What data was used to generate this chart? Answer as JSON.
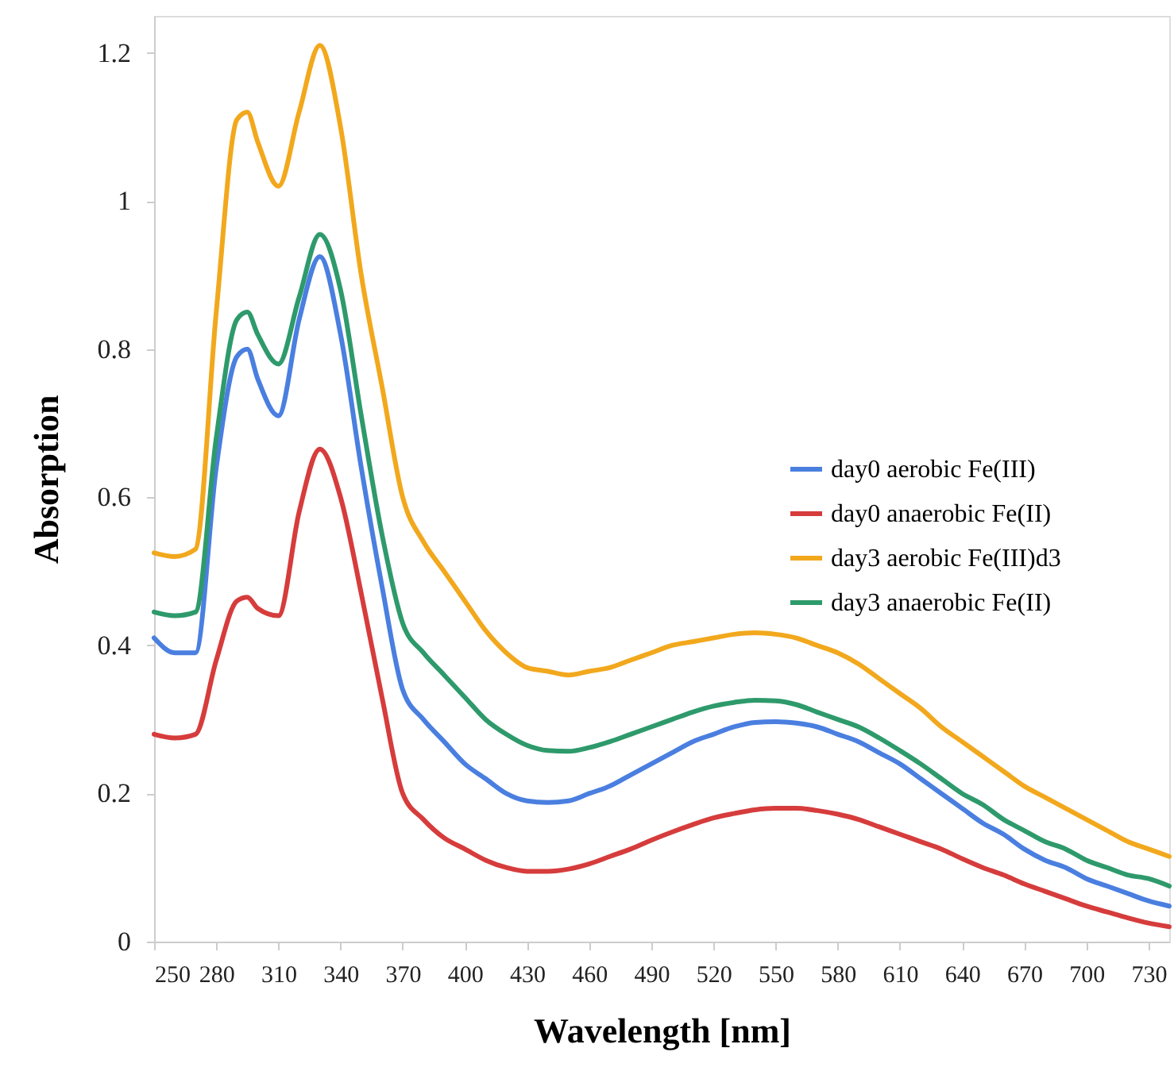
{
  "chart_data": {
    "type": "line",
    "xlabel": "Wavelength [nm]",
    "ylabel": "Absorption",
    "x": [
      250,
      260,
      270,
      280,
      290,
      295,
      300,
      310,
      320,
      330,
      340,
      350,
      360,
      370,
      380,
      390,
      400,
      410,
      420,
      430,
      440,
      450,
      460,
      470,
      480,
      490,
      500,
      510,
      520,
      530,
      540,
      550,
      560,
      570,
      580,
      590,
      600,
      610,
      620,
      630,
      640,
      650,
      660,
      670,
      680,
      690,
      700,
      710,
      720,
      730,
      740
    ],
    "xlim": [
      250,
      740
    ],
    "xticks": [
      250,
      280,
      310,
      340,
      370,
      400,
      430,
      460,
      490,
      520,
      550,
      580,
      610,
      640,
      670,
      700,
      730
    ],
    "ylim": [
      0,
      1.25
    ],
    "yticks": [
      0,
      0.2,
      0.4,
      0.6,
      0.8,
      1,
      1.2
    ],
    "grid": false,
    "legend": "right",
    "line_style": "solid",
    "marker": "none",
    "series": [
      {
        "name": "day0 aerobic Fe(III)",
        "color": "#4a7fe0",
        "values": [
          0.41,
          0.39,
          0.39,
          0.64,
          0.79,
          0.8,
          0.76,
          0.71,
          0.84,
          0.925,
          0.82,
          0.64,
          0.48,
          0.34,
          0.3,
          0.27,
          0.24,
          0.22,
          0.2,
          0.19,
          0.188,
          0.19,
          0.2,
          0.21,
          0.225,
          0.24,
          0.255,
          0.27,
          0.28,
          0.29,
          0.296,
          0.297,
          0.295,
          0.29,
          0.28,
          0.27,
          0.255,
          0.24,
          0.22,
          0.2,
          0.18,
          0.16,
          0.145,
          0.125,
          0.11,
          0.1,
          0.085,
          0.075,
          0.065,
          0.055,
          0.048
        ]
      },
      {
        "name": "day0 anaerobic Fe(II)",
        "color": "#d63c3c",
        "values": [
          0.28,
          0.275,
          0.28,
          0.38,
          0.46,
          0.465,
          0.45,
          0.44,
          0.58,
          0.665,
          0.6,
          0.47,
          0.33,
          0.2,
          0.165,
          0.14,
          0.125,
          0.11,
          0.1,
          0.095,
          0.095,
          0.098,
          0.105,
          0.115,
          0.125,
          0.137,
          0.148,
          0.158,
          0.167,
          0.173,
          0.178,
          0.18,
          0.18,
          0.177,
          0.172,
          0.165,
          0.155,
          0.145,
          0.135,
          0.125,
          0.112,
          0.1,
          0.09,
          0.078,
          0.068,
          0.058,
          0.048,
          0.04,
          0.032,
          0.025,
          0.02
        ]
      },
      {
        "name": "day3 aerobic Fe(III)d3",
        "color": "#f2a81d",
        "values": [
          0.525,
          0.52,
          0.53,
          0.85,
          1.11,
          1.12,
          1.08,
          1.02,
          1.12,
          1.21,
          1.1,
          0.9,
          0.75,
          0.6,
          0.54,
          0.5,
          0.46,
          0.42,
          0.39,
          0.37,
          0.365,
          0.36,
          0.365,
          0.37,
          0.38,
          0.39,
          0.4,
          0.405,
          0.41,
          0.415,
          0.417,
          0.415,
          0.41,
          0.4,
          0.39,
          0.375,
          0.355,
          0.335,
          0.315,
          0.29,
          0.27,
          0.25,
          0.23,
          0.21,
          0.195,
          0.18,
          0.165,
          0.15,
          0.135,
          0.125,
          0.115
        ]
      },
      {
        "name": "day3 anaerobic Fe(II)",
        "color": "#2e9a6c",
        "values": [
          0.445,
          0.44,
          0.445,
          0.68,
          0.84,
          0.85,
          0.82,
          0.78,
          0.87,
          0.955,
          0.88,
          0.71,
          0.55,
          0.43,
          0.39,
          0.36,
          0.33,
          0.3,
          0.28,
          0.265,
          0.258,
          0.257,
          0.262,
          0.27,
          0.28,
          0.29,
          0.3,
          0.31,
          0.318,
          0.323,
          0.326,
          0.325,
          0.32,
          0.31,
          0.3,
          0.29,
          0.275,
          0.258,
          0.24,
          0.22,
          0.2,
          0.185,
          0.165,
          0.15,
          0.135,
          0.125,
          0.11,
          0.1,
          0.09,
          0.085,
          0.075
        ]
      }
    ]
  }
}
